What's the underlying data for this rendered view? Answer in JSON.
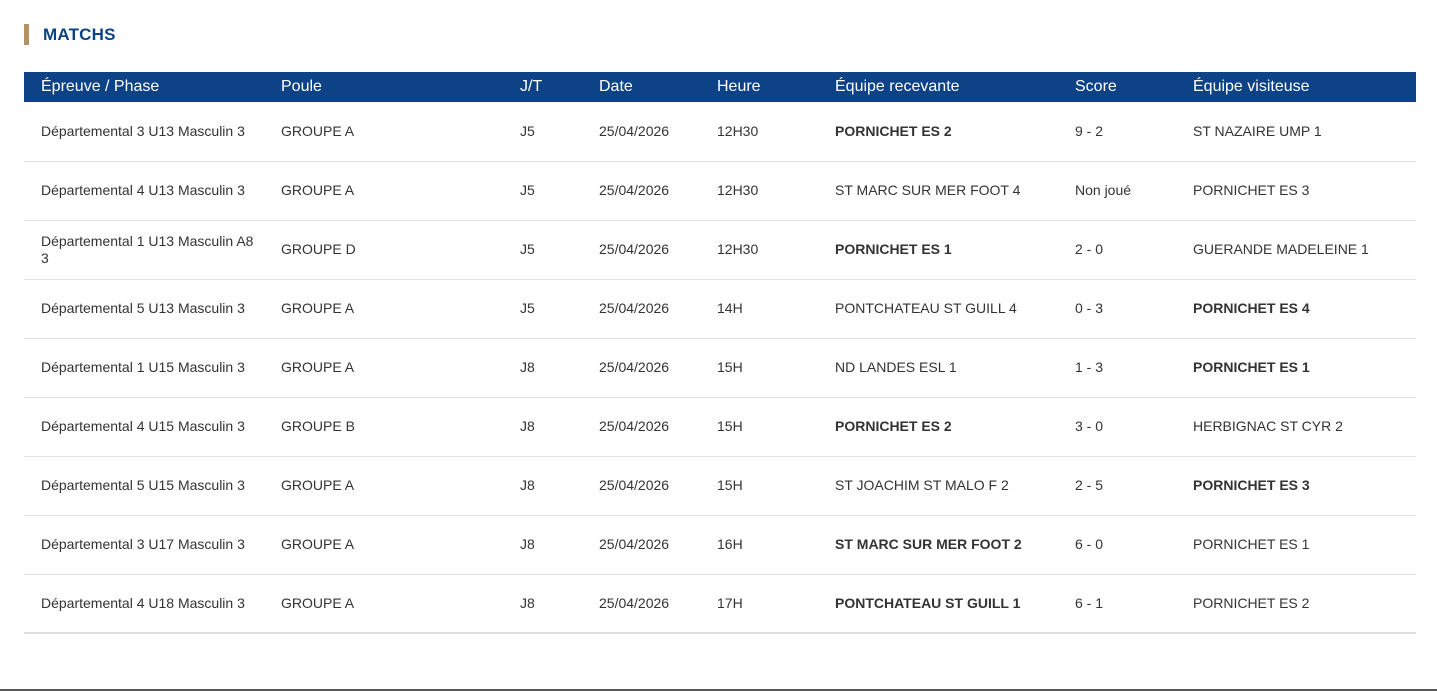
{
  "section": {
    "title": "MATCHS"
  },
  "colors": {
    "header_bg": "#0d4386",
    "title_color": "#0d4386",
    "accent_bar": "#b39263"
  },
  "table": {
    "headers": [
      "Épreuve / Phase",
      "Poule",
      "J/T",
      "Date",
      "Heure",
      "Équipe recevante",
      "Score",
      "Équipe visiteuse"
    ],
    "rows": [
      {
        "epreuve": "Départemental 3 U13 Masculin 3",
        "poule": "GROUPE A",
        "jt": "J5",
        "date": "25/04/2026",
        "heure": "12H30",
        "recevante": "PORNICHET ES 2",
        "recevante_bold": true,
        "score": "9 - 2",
        "visiteuse": "ST NAZAIRE UMP 1",
        "visiteuse_bold": false
      },
      {
        "epreuve": "Départemental 4 U13 Masculin 3",
        "poule": "GROUPE A",
        "jt": "J5",
        "date": "25/04/2026",
        "heure": "12H30",
        "recevante": "ST MARC SUR MER FOOT 4",
        "recevante_bold": false,
        "score": "Non joué",
        "visiteuse": "PORNICHET ES 3",
        "visiteuse_bold": false
      },
      {
        "epreuve": "Départemental 1 U13 Masculin A8 3",
        "poule": "GROUPE D",
        "jt": "J5",
        "date": "25/04/2026",
        "heure": "12H30",
        "recevante": "PORNICHET ES 1",
        "recevante_bold": true,
        "score": "2 - 0",
        "visiteuse": "GUERANDE MADELEINE 1",
        "visiteuse_bold": false
      },
      {
        "epreuve": "Départemental 5 U13 Masculin 3",
        "poule": "GROUPE A",
        "jt": "J5",
        "date": "25/04/2026",
        "heure": "14H",
        "recevante": "PONTCHATEAU ST GUILL 4",
        "recevante_bold": false,
        "score": "0 - 3",
        "visiteuse": "PORNICHET ES 4",
        "visiteuse_bold": true
      },
      {
        "epreuve": "Départemental 1 U15 Masculin 3",
        "poule": "GROUPE A",
        "jt": "J8",
        "date": "25/04/2026",
        "heure": "15H",
        "recevante": "ND LANDES ESL 1",
        "recevante_bold": false,
        "score": "1 - 3",
        "visiteuse": "PORNICHET ES 1",
        "visiteuse_bold": true
      },
      {
        "epreuve": "Départemental 4 U15 Masculin 3",
        "poule": "GROUPE B",
        "jt": "J8",
        "date": "25/04/2026",
        "heure": "15H",
        "recevante": "PORNICHET ES 2",
        "recevante_bold": true,
        "score": "3 - 0",
        "visiteuse": "HERBIGNAC ST CYR 2",
        "visiteuse_bold": false
      },
      {
        "epreuve": "Départemental 5 U15 Masculin 3",
        "poule": "GROUPE A",
        "jt": "J8",
        "date": "25/04/2026",
        "heure": "15H",
        "recevante": "ST JOACHIM ST MALO F 2",
        "recevante_bold": false,
        "score": "2 - 5",
        "visiteuse": "PORNICHET ES 3",
        "visiteuse_bold": true
      },
      {
        "epreuve": "Départemental 3 U17 Masculin 3",
        "poule": "GROUPE A",
        "jt": "J8",
        "date": "25/04/2026",
        "heure": "16H",
        "recevante": "ST MARC SUR MER FOOT 2",
        "recevante_bold": true,
        "score": "6 - 0",
        "visiteuse": "PORNICHET ES 1",
        "visiteuse_bold": false
      },
      {
        "epreuve": "Départemental 4 U18 Masculin 3",
        "poule": "GROUPE A",
        "jt": "J8",
        "date": "25/04/2026",
        "heure": "17H",
        "recevante": "PONTCHATEAU ST GUILL 1",
        "recevante_bold": true,
        "score": "6 - 1",
        "visiteuse": "PORNICHET ES 2",
        "visiteuse_bold": false
      }
    ]
  }
}
